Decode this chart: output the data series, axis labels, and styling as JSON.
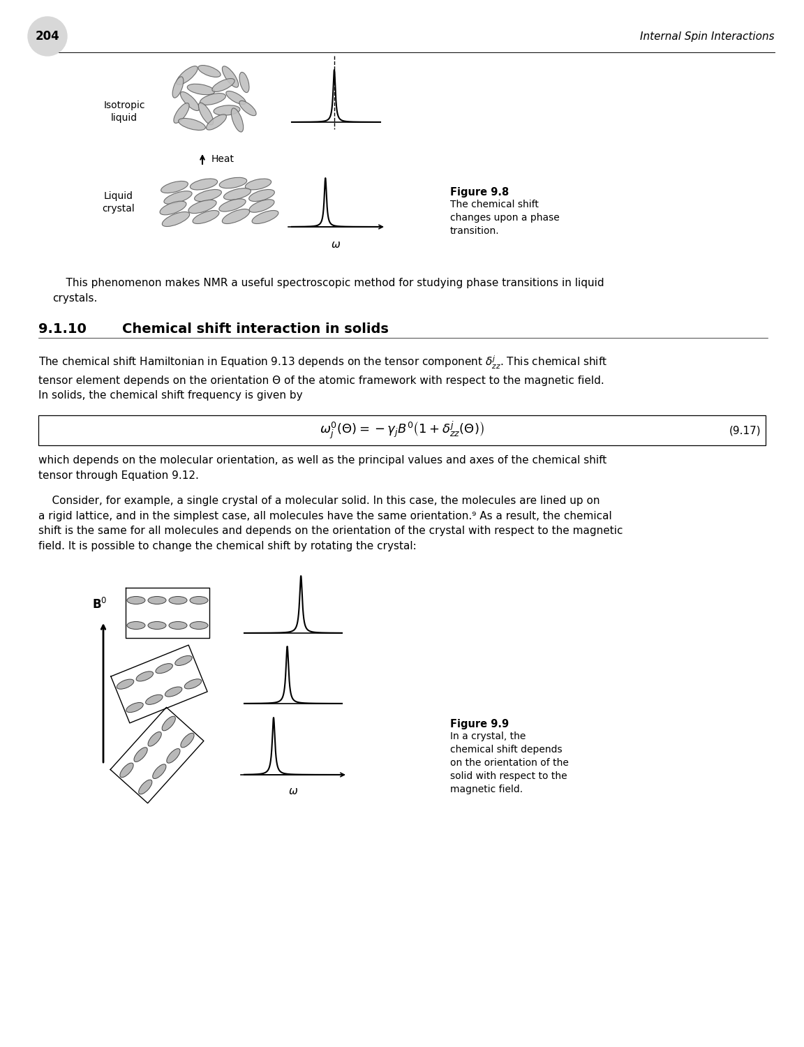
{
  "page_number": "204",
  "header_right": "Internal Spin Interactions",
  "background_color": "#ffffff",
  "fig88_iso_label": "Isotropic\nliquid",
  "fig88_lc_label": "Liquid\ncrystal",
  "fig88_heat_label": "Heat",
  "fig88_label": "Figure 9.8",
  "fig88_caption": "The chemical shift\nchanges upon a phase\ntransition.",
  "fig99_label": "Figure 9.9",
  "fig99_caption": "In a crystal, the\nchemical shift depends\non the orientation of the\nsolid with respect to the\nmagnetic field.",
  "intro_text": "    This phenomenon makes NMR a useful spectroscopic method for studying phase transitions in liquid\ncrystals.",
  "section_heading_num": "9.1.10",
  "section_heading_text": "Chemical shift interaction in solids",
  "body1": "The chemical shift Hamiltonian in Equation 9.13 depends on the tensor component $\\delta^j_{zz}$. This chemical shift\ntensor element depends on the orientation Θ of the atomic framework with respect to the magnetic field.\nIn solids, the chemical shift frequency is given by",
  "body2": "which depends on the molecular orientation, as well as the principal values and axes of the chemical shift\ntensor through Equation 9.12.",
  "body3": "    Consider, for example, a single crystal of a molecular solid. In this case, the molecules are lined up on\na rigid lattice, and in the simplest case, all molecules have the same orientation.⁹ As a result, the chemical\nshift is the same for all molecules and depends on the orientation of the crystal with respect to the magnetic\nfield. It is possible to change the chemical shift by rotating the crystal:",
  "eq_label": "(9.17)",
  "eq_formula": "$\\omega^0_j(\\Theta) = -\\gamma_j B^0 \\left(1 + \\delta^j_{zz}(\\Theta)\\right)$"
}
